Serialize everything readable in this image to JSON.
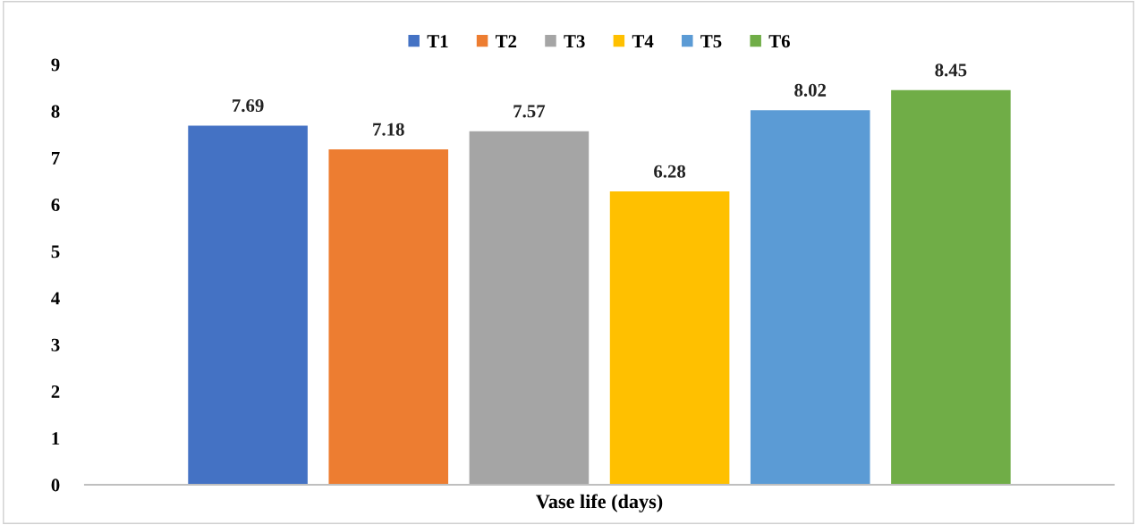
{
  "chart_data": {
    "type": "bar",
    "xlabel": "Vase life (days)",
    "categories": [
      null
    ],
    "series": [
      {
        "name": "T1",
        "color": "#4472c4",
        "values": [
          7.69
        ]
      },
      {
        "name": "T2",
        "color": "#ed7d31",
        "values": [
          7.18
        ]
      },
      {
        "name": "T3",
        "color": "#a5a5a5",
        "values": [
          7.57
        ]
      },
      {
        "name": "T4",
        "color": "#ffc000",
        "values": [
          6.28
        ]
      },
      {
        "name": "T5",
        "color": "#5b9bd5",
        "values": [
          8.02
        ]
      },
      {
        "name": "T6",
        "color": "#70ad47",
        "values": [
          8.45
        ]
      }
    ],
    "ylim": [
      0,
      9
    ],
    "yticks": [
      0,
      1,
      2,
      3,
      4,
      5,
      6,
      7,
      8,
      9
    ],
    "grid": false,
    "legend": "top",
    "data_labels": true
  }
}
